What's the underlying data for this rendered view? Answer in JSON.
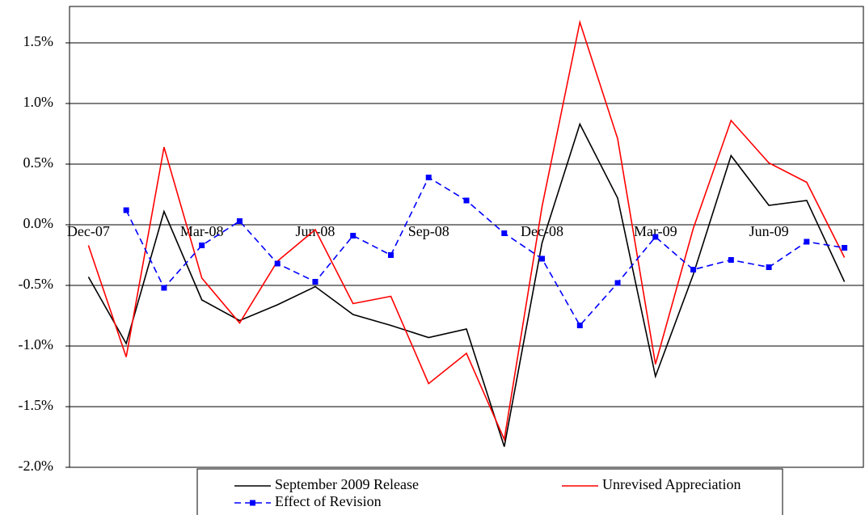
{
  "chart_data": {
    "type": "line",
    "categories": [
      "Dec-07",
      null,
      null,
      "Mar-08",
      null,
      null,
      "Jun-08",
      null,
      null,
      "Sep-08",
      null,
      null,
      "Dec-08",
      null,
      null,
      "Mar-09",
      null,
      null,
      "Jun-09",
      null,
      null
    ],
    "series": [
      {
        "name": "September 2009 Release",
        "color": "#000000",
        "line_style": "solid",
        "marker": "none",
        "values": [
          -0.43,
          -0.98,
          0.11,
          -0.62,
          -0.79,
          -0.66,
          -0.51,
          -0.74,
          -0.83,
          -0.93,
          -0.86,
          -1.83,
          -0.15,
          0.83,
          0.22,
          -1.25,
          -0.41,
          0.57,
          0.16,
          0.2,
          -0.47
        ]
      },
      {
        "name": "Unrevised Appreciation",
        "color": "#ff0000",
        "line_style": "solid",
        "marker": "none",
        "values": [
          -0.17,
          -1.09,
          0.64,
          -0.44,
          -0.81,
          -0.3,
          -0.04,
          -0.65,
          -0.59,
          -1.31,
          -1.06,
          -1.77,
          0.15,
          1.67,
          0.71,
          -1.15,
          -0.03,
          0.86,
          0.51,
          0.35,
          -0.27
        ]
      },
      {
        "name": "Effect of Revision",
        "color": "#0000ff",
        "line_style": "dashed",
        "marker": "square",
        "values": [
          null,
          0.12,
          -0.52,
          -0.17,
          0.03,
          -0.32,
          -0.47,
          -0.09,
          -0.25,
          0.39,
          0.2,
          -0.07,
          -0.28,
          -0.83,
          -0.48,
          -0.1,
          -0.37,
          -0.29,
          -0.35,
          -0.14,
          -0.19
        ]
      }
    ],
    "ylim": [
      -2.0,
      1.8
    ],
    "yticks": [
      {
        "value": -2.0,
        "label": "-2.0%"
      },
      {
        "value": -1.5,
        "label": "-1.5%"
      },
      {
        "value": -1.0,
        "label": "-1.0%"
      },
      {
        "value": -0.5,
        "label": "-0.5%"
      },
      {
        "value": 0.0,
        "label": "0.0%"
      },
      {
        "value": 0.5,
        "label": "0.5%"
      },
      {
        "value": 1.0,
        "label": "1.0%"
      },
      {
        "value": 1.5,
        "label": "1.5%"
      }
    ],
    "grid": true,
    "legend": "bottom"
  }
}
